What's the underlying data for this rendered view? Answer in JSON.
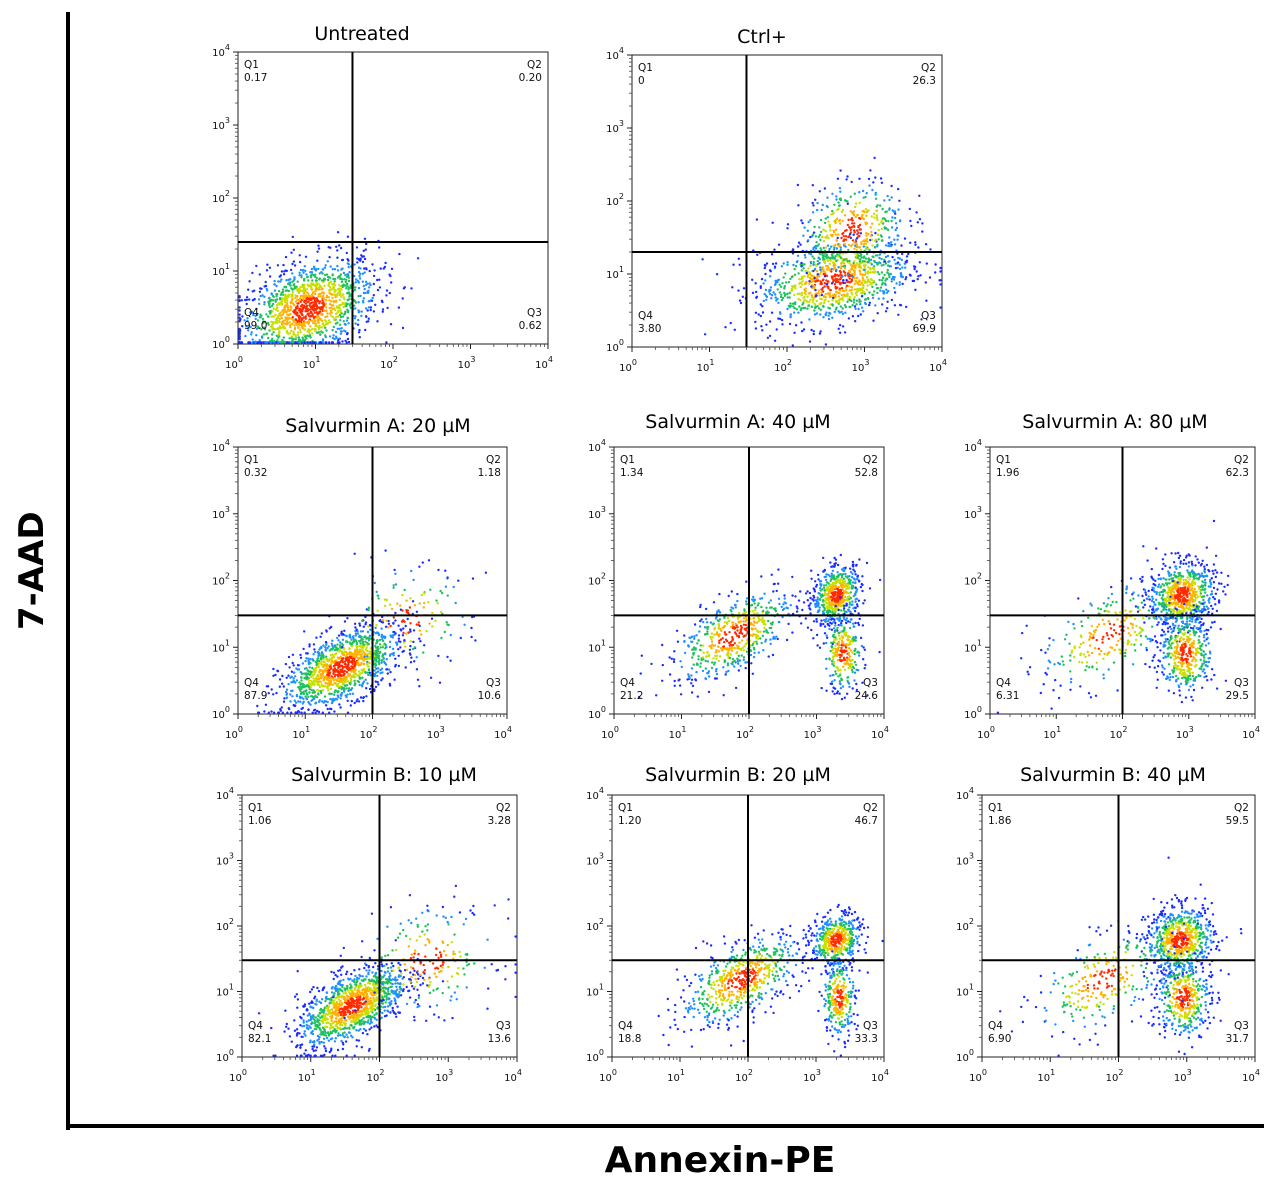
{
  "figure": {
    "y_axis_label": "7-AAD",
    "x_axis_label": "Annexin-PE"
  },
  "chart_data": [
    {
      "type": "scatter",
      "title": "Untreated",
      "x_scale": "log",
      "y_scale": "log",
      "xlim": [
        1,
        10000
      ],
      "ylim": [
        1,
        10000
      ],
      "tick_labels": [
        "10^0",
        "10^1",
        "10^2",
        "10^3",
        "10^4"
      ],
      "gate": {
        "x": 30,
        "y": 25
      },
      "quadrants": [
        {
          "name": "Q1",
          "value": "0.17"
        },
        {
          "name": "Q2",
          "value": "0.20"
        },
        {
          "name": "Q3",
          "value": "0.62"
        },
        {
          "name": "Q4",
          "value": "99.0"
        }
      ],
      "populations": [
        {
          "x": 8,
          "y": 3,
          "sx": 0.45,
          "sy": 0.35,
          "rho": 0.4,
          "w": 1
        }
      ]
    },
    {
      "type": "scatter",
      "title": "Ctrl+",
      "x_scale": "log",
      "y_scale": "log",
      "xlim": [
        1,
        10000
      ],
      "ylim": [
        1,
        10000
      ],
      "tick_labels": [
        "10^0",
        "10^1",
        "10^2",
        "10^3",
        "10^4"
      ],
      "gate": {
        "x": 30,
        "y": 20
      },
      "quadrants": [
        {
          "name": "Q1",
          "value": "0"
        },
        {
          "name": "Q2",
          "value": "26.3"
        },
        {
          "name": "Q3",
          "value": "69.9"
        },
        {
          "name": "Q4",
          "value": "3.80"
        }
      ],
      "populations": [
        {
          "x": 400,
          "y": 8,
          "sx": 0.5,
          "sy": 0.3,
          "rho": 0.3,
          "w": 0.7
        },
        {
          "x": 700,
          "y": 40,
          "sx": 0.35,
          "sy": 0.35,
          "rho": 0.2,
          "w": 0.3
        }
      ]
    },
    {
      "type": "scatter",
      "title": "Salvurmin A: 20 µM",
      "x_scale": "log",
      "y_scale": "log",
      "xlim": [
        1,
        10000
      ],
      "ylim": [
        1,
        10000
      ],
      "tick_labels": [
        "10^0",
        "10^1",
        "10^2",
        "10^3",
        "10^4"
      ],
      "gate": {
        "x": 100,
        "y": 30
      },
      "quadrants": [
        {
          "name": "Q1",
          "value": "0.32"
        },
        {
          "name": "Q2",
          "value": "1.18"
        },
        {
          "name": "Q3",
          "value": "10.6"
        },
        {
          "name": "Q4",
          "value": "87.9"
        }
      ],
      "populations": [
        {
          "x": 35,
          "y": 5,
          "sx": 0.45,
          "sy": 0.32,
          "rho": 0.6,
          "w": 0.9
        },
        {
          "x": 300,
          "y": 25,
          "sx": 0.5,
          "sy": 0.4,
          "rho": 0.2,
          "w": 0.1
        }
      ]
    },
    {
      "type": "scatter",
      "title": "Salvurmin A: 40 µM",
      "x_scale": "log",
      "y_scale": "log",
      "xlim": [
        1,
        10000
      ],
      "ylim": [
        1,
        10000
      ],
      "tick_labels": [
        "10^0",
        "10^1",
        "10^2",
        "10^3",
        "10^4"
      ],
      "gate": {
        "x": 100,
        "y": 30
      },
      "quadrants": [
        {
          "name": "Q1",
          "value": "1.34"
        },
        {
          "name": "Q2",
          "value": "52.8"
        },
        {
          "name": "Q3",
          "value": "24.6"
        },
        {
          "name": "Q4",
          "value": "21.2"
        }
      ],
      "populations": [
        {
          "x": 2000,
          "y": 60,
          "sx": 0.18,
          "sy": 0.22,
          "rho": 0.2,
          "w": 0.4
        },
        {
          "x": 2500,
          "y": 8,
          "sx": 0.15,
          "sy": 0.3,
          "rho": 0,
          "w": 0.2
        },
        {
          "x": 60,
          "y": 15,
          "sx": 0.45,
          "sy": 0.35,
          "rho": 0.6,
          "w": 0.4
        }
      ]
    },
    {
      "type": "scatter",
      "title": "Salvurmin A: 80 µM",
      "x_scale": "log",
      "y_scale": "log",
      "xlim": [
        1,
        10000
      ],
      "ylim": [
        1,
        10000
      ],
      "tick_labels": [
        "10^0",
        "10^1",
        "10^2",
        "10^3",
        "10^4"
      ],
      "gate": {
        "x": 100,
        "y": 30
      },
      "quadrants": [
        {
          "name": "Q1",
          "value": "1.96"
        },
        {
          "name": "Q2",
          "value": "62.3"
        },
        {
          "name": "Q3",
          "value": "29.5"
        },
        {
          "name": "Q4",
          "value": "6.31"
        }
      ],
      "populations": [
        {
          "x": 800,
          "y": 60,
          "sx": 0.25,
          "sy": 0.25,
          "rho": 0.1,
          "w": 0.5
        },
        {
          "x": 900,
          "y": 8,
          "sx": 0.2,
          "sy": 0.3,
          "rho": 0,
          "w": 0.3
        },
        {
          "x": 60,
          "y": 15,
          "sx": 0.5,
          "sy": 0.4,
          "rho": 0.5,
          "w": 0.2
        }
      ]
    },
    {
      "type": "scatter",
      "title": "Salvurmin B: 10 µM",
      "x_scale": "log",
      "y_scale": "log",
      "xlim": [
        1,
        10000
      ],
      "ylim": [
        1,
        10000
      ],
      "tick_labels": [
        "10^0",
        "10^1",
        "10^2",
        "10^3",
        "10^4"
      ],
      "gate": {
        "x": 100,
        "y": 30
      },
      "quadrants": [
        {
          "name": "Q1",
          "value": "1.06"
        },
        {
          "name": "Q2",
          "value": "3.28"
        },
        {
          "name": "Q3",
          "value": "13.6"
        },
        {
          "name": "Q4",
          "value": "82.1"
        }
      ],
      "populations": [
        {
          "x": 40,
          "y": 6,
          "sx": 0.4,
          "sy": 0.32,
          "rho": 0.6,
          "w": 0.85
        },
        {
          "x": 500,
          "y": 30,
          "sx": 0.5,
          "sy": 0.4,
          "rho": 0.1,
          "w": 0.15
        }
      ]
    },
    {
      "type": "scatter",
      "title": "Salvurmin B: 20 µM",
      "x_scale": "log",
      "y_scale": "log",
      "xlim": [
        1,
        10000
      ],
      "ylim": [
        1,
        10000
      ],
      "tick_labels": [
        "10^0",
        "10^1",
        "10^2",
        "10^3",
        "10^4"
      ],
      "gate": {
        "x": 100,
        "y": 30
      },
      "quadrants": [
        {
          "name": "Q1",
          "value": "1.20"
        },
        {
          "name": "Q2",
          "value": "46.7"
        },
        {
          "name": "Q3",
          "value": "33.3"
        },
        {
          "name": "Q4",
          "value": "18.8"
        }
      ],
      "populations": [
        {
          "x": 2000,
          "y": 60,
          "sx": 0.18,
          "sy": 0.2,
          "rho": 0.2,
          "w": 0.35
        },
        {
          "x": 2200,
          "y": 8,
          "sx": 0.12,
          "sy": 0.3,
          "rho": 0,
          "w": 0.2
        },
        {
          "x": 80,
          "y": 15,
          "sx": 0.45,
          "sy": 0.35,
          "rho": 0.6,
          "w": 0.45
        }
      ]
    },
    {
      "type": "scatter",
      "title": "Salvurmin B: 40 µM",
      "x_scale": "log",
      "y_scale": "log",
      "xlim": [
        1,
        10000
      ],
      "ylim": [
        1,
        10000
      ],
      "tick_labels": [
        "10^0",
        "10^1",
        "10^2",
        "10^3",
        "10^4"
      ],
      "gate": {
        "x": 100,
        "y": 30
      },
      "quadrants": [
        {
          "name": "Q1",
          "value": "1.86"
        },
        {
          "name": "Q2",
          "value": "59.5"
        },
        {
          "name": "Q3",
          "value": "31.7"
        },
        {
          "name": "Q4",
          "value": "6.90"
        }
      ],
      "populations": [
        {
          "x": 800,
          "y": 60,
          "sx": 0.25,
          "sy": 0.25,
          "rho": 0.1,
          "w": 0.5
        },
        {
          "x": 900,
          "y": 8,
          "sx": 0.2,
          "sy": 0.3,
          "rho": 0,
          "w": 0.3
        },
        {
          "x": 60,
          "y": 15,
          "sx": 0.5,
          "sy": 0.4,
          "rho": 0.5,
          "w": 0.2
        }
      ]
    }
  ]
}
